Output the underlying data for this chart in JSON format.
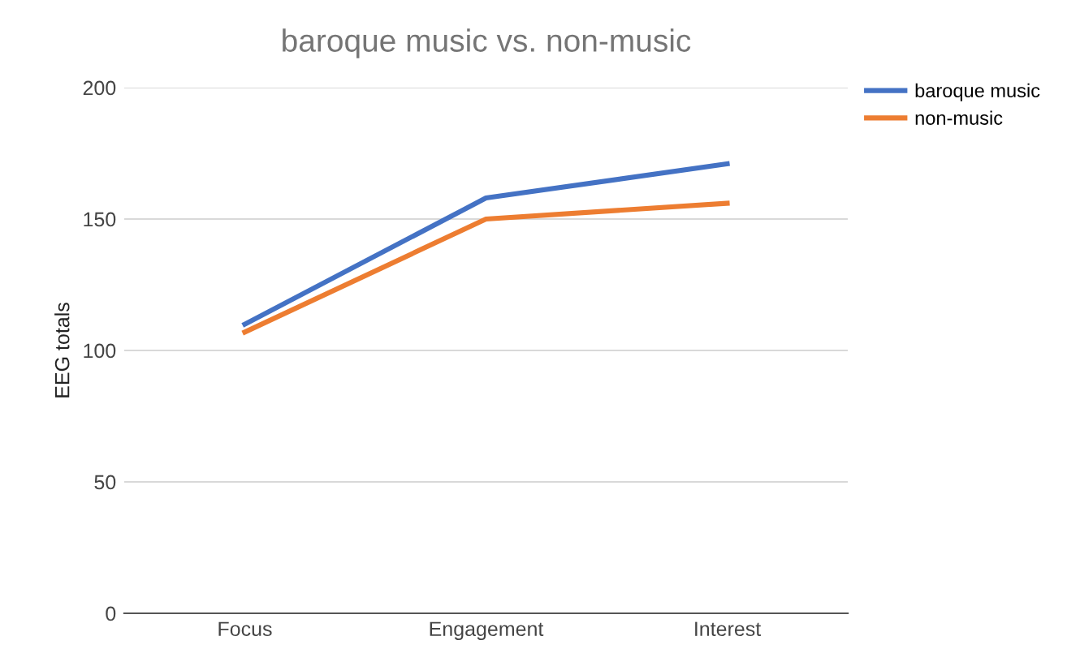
{
  "chart_data": {
    "type": "line",
    "title": "baroque music vs. non-music",
    "ylabel": "EEG totals",
    "categories": [
      "Focus",
      "Engagement",
      "Interest"
    ],
    "series": [
      {
        "name": "baroque music",
        "color": "#4472c4",
        "values": [
          110,
          158,
          171
        ]
      },
      {
        "name": "non-music",
        "color": "#ed7d31",
        "values": [
          107,
          150,
          156
        ]
      }
    ],
    "ylim": [
      0,
      200
    ],
    "yticks": [
      0,
      50,
      100,
      150,
      200
    ],
    "grid": "y",
    "legend": "top right",
    "marker": "none",
    "line_style": "solid"
  }
}
